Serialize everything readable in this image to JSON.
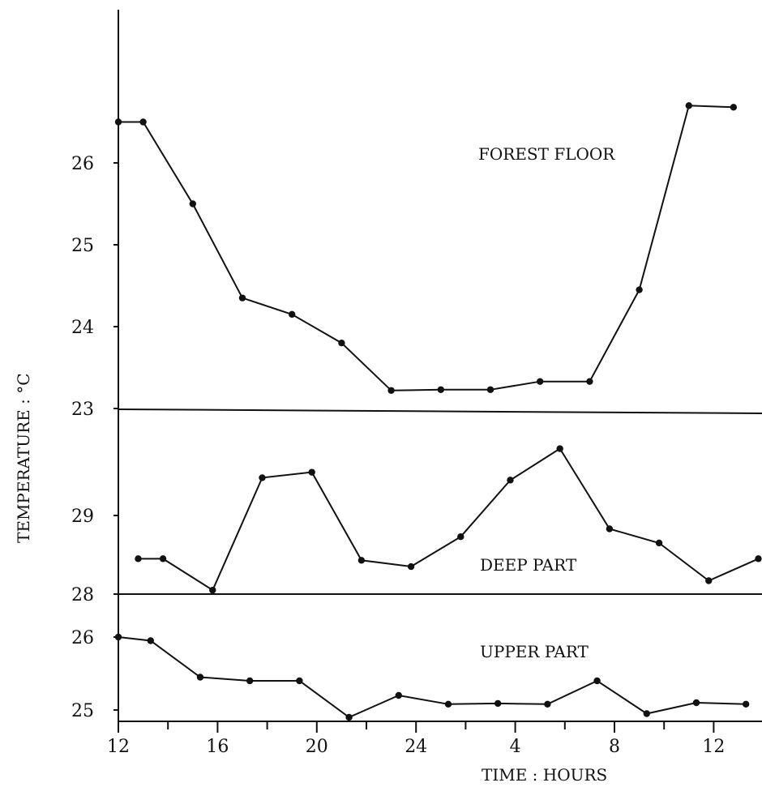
{
  "chart_data": {
    "type": "line",
    "xlabel": "TIME : HOURS",
    "ylabel": "TEMPERATURE : °C",
    "x_tick_labels": [
      {
        "value": 0,
        "label": "12"
      },
      {
        "value": 4,
        "label": "16"
      },
      {
        "value": 8,
        "label": "20"
      },
      {
        "value": 12,
        "label": "24"
      },
      {
        "value": 16,
        "label": "4"
      },
      {
        "value": 20,
        "label": "8"
      },
      {
        "value": 24,
        "label": "12"
      }
    ],
    "x_minor_ticks": [
      2,
      6,
      10,
      14,
      18,
      22
    ],
    "xlim": [
      0,
      26
    ],
    "panels": [
      {
        "label": "FOREST FLOOR",
        "ylim": [
          23,
          26.3
        ],
        "y_ticks": [
          {
            "value": 26,
            "label": "26"
          },
          {
            "value": 25,
            "label": "25"
          },
          {
            "value": 24,
            "label": "24"
          },
          {
            "value": 23,
            "label": "23"
          }
        ],
        "series": [
          {
            "x": [
              0,
              1,
              3,
              5,
              7,
              9,
              11,
              13,
              15,
              17,
              19,
              21,
              23,
              24.8
            ],
            "y": [
              26.5,
              26.5,
              25.5,
              24.35,
              24.15,
              23.8,
              23.22,
              23.23,
              23.23,
              23.33,
              23.33,
              24.45,
              26.7,
              26.68
            ]
          }
        ]
      },
      {
        "label": "DEEP PART",
        "ylim": [
          28,
          29.3
        ],
        "y_ticks": [
          {
            "value": 29,
            "label": "29"
          },
          {
            "value": 28,
            "label": "28"
          }
        ],
        "series": [
          {
            "x": [
              0.8,
              1.8,
              3.8,
              5.8,
              7.8,
              9.8,
              11.8,
              13.8,
              15.8,
              17.8,
              19.8,
              21.8,
              23.8,
              25.8
            ],
            "y": [
              28.45,
              28.45,
              28.05,
              29.48,
              29.55,
              28.43,
              28.35,
              28.73,
              29.45,
              29.85,
              28.83,
              28.65,
              28.17,
              28.45
            ]
          }
        ]
      },
      {
        "label": "UPPER PART",
        "ylim": [
          24.95,
          26.6
        ],
        "y_ticks": [
          {
            "value": 26,
            "label": "26"
          },
          {
            "value": 25,
            "label": "25"
          }
        ],
        "series": [
          {
            "x": [
              0,
              1.3,
              3.3,
              5.3,
              7.3,
              9.3,
              11.3,
              13.3,
              15.3,
              17.3,
              19.3,
              21.3,
              23.3,
              25.3
            ],
            "y": [
              26.0,
              25.95,
              25.45,
              25.4,
              25.4,
              24.9,
              25.2,
              25.08,
              25.09,
              25.08,
              25.4,
              24.95,
              25.1,
              25.08
            ]
          }
        ]
      }
    ]
  }
}
